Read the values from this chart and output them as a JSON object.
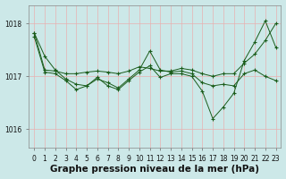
{
  "title": "Graphe pression niveau de la mer (hPa)",
  "bg_color": "#cce8e8",
  "grid_color_v": "#f0a0a0",
  "grid_color_h": "#f0a0a0",
  "line_color": "#1a5c1a",
  "xlim": [
    -0.5,
    23.5
  ],
  "ylim": [
    1015.65,
    1018.35
  ],
  "yticks": [
    1016,
    1017,
    1018
  ],
  "xticks": [
    0,
    1,
    2,
    3,
    4,
    5,
    6,
    7,
    8,
    9,
    10,
    11,
    12,
    13,
    14,
    15,
    16,
    17,
    18,
    19,
    20,
    21,
    22,
    23
  ],
  "line1": [
    1017.82,
    1017.38,
    1017.12,
    1016.95,
    1016.85,
    1016.82,
    1016.95,
    1016.88,
    1016.78,
    1016.95,
    1017.12,
    1017.48,
    1017.12,
    1017.08,
    1017.1,
    1017.05,
    1016.88,
    1016.82,
    1016.85,
    1016.82,
    1017.05,
    1017.12,
    1017.0,
    1016.92
  ],
  "line2": [
    1017.82,
    1017.12,
    1017.1,
    1017.05,
    1017.05,
    1017.08,
    1017.1,
    1017.08,
    1017.05,
    1017.1,
    1017.18,
    1017.15,
    1017.1,
    1017.1,
    1017.15,
    1017.12,
    1017.05,
    1017.0,
    1017.05,
    1017.05,
    1017.25,
    1017.42,
    1017.68,
    1018.0
  ],
  "line3": [
    1017.75,
    1017.08,
    1017.05,
    1016.92,
    1016.75,
    1016.82,
    1016.98,
    1016.82,
    1016.75,
    1016.92,
    1017.08,
    1017.2,
    1016.98,
    1017.05,
    1017.05,
    1017.0,
    1016.72,
    1016.2,
    1016.42,
    1016.68,
    1017.3,
    1017.65,
    1018.05,
    1017.55
  ],
  "title_fontsize": 7.5,
  "tick_fontsize": 5.5,
  "lw": 0.7,
  "ms": 2.5
}
